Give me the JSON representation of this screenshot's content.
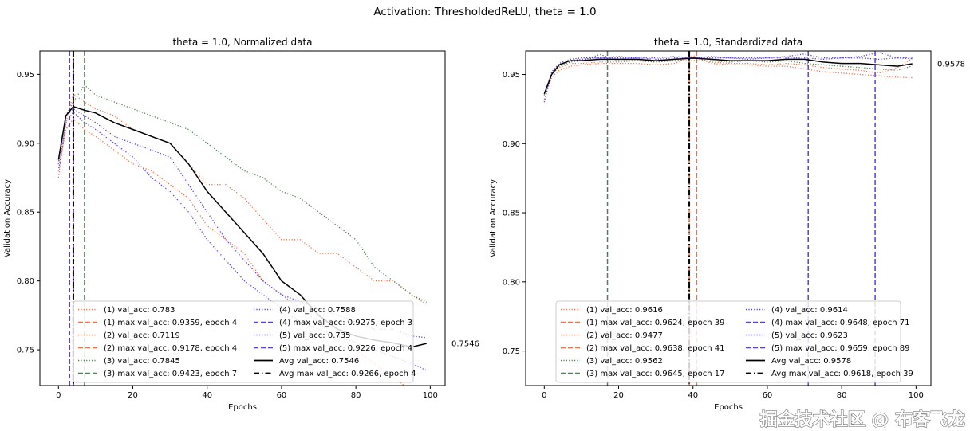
{
  "suptitle": "Activation: ThresholdedReLU, theta = 1.0",
  "watermark": "掘金技术社区 @ 布客飞龙",
  "colors": {
    "s1": "#e8744a",
    "s2": "#e8744a",
    "s3": "#4f7f55",
    "s4": "#5b3fd6",
    "s5": "#5b3fd6",
    "avg": "#000000"
  },
  "chart_data": [
    {
      "type": "line",
      "title": "theta = 1.0, Normalized data",
      "xlabel": "Epochs",
      "ylabel": "Validation Accuracy",
      "xlim": [
        -5,
        104
      ],
      "ylim": [
        0.724,
        0.967
      ],
      "xticks": [
        0,
        20,
        40,
        60,
        80,
        100
      ],
      "yticks": [
        0.75,
        0.8,
        0.85,
        0.9,
        0.95
      ],
      "grid": false,
      "legend_placement": "lower-center",
      "end_annotation": "0.7546",
      "x": [
        0,
        2,
        4,
        7,
        10,
        15,
        20,
        25,
        30,
        35,
        40,
        45,
        50,
        55,
        60,
        65,
        70,
        75,
        80,
        85,
        90,
        95,
        99
      ],
      "series": [
        {
          "key": "s1",
          "style": "dotted",
          "values": [
            0.875,
            0.915,
            0.9359,
            0.93,
            0.925,
            0.92,
            0.91,
            0.905,
            0.9,
            0.885,
            0.87,
            0.87,
            0.86,
            0.845,
            0.83,
            0.83,
            0.82,
            0.82,
            0.81,
            0.8,
            0.8,
            0.79,
            0.783
          ]
        },
        {
          "key": "s2",
          "style": "dotted",
          "values": [
            0.88,
            0.91,
            0.9178,
            0.91,
            0.905,
            0.895,
            0.885,
            0.88,
            0.87,
            0.86,
            0.84,
            0.83,
            0.82,
            0.8,
            0.79,
            0.78,
            0.77,
            0.76,
            0.75,
            0.74,
            0.73,
            0.72,
            0.7119
          ]
        },
        {
          "key": "s3",
          "style": "dotted",
          "values": [
            0.885,
            0.92,
            0.93,
            0.9423,
            0.935,
            0.93,
            0.925,
            0.92,
            0.915,
            0.91,
            0.9,
            0.89,
            0.88,
            0.875,
            0.865,
            0.86,
            0.85,
            0.84,
            0.83,
            0.81,
            0.8,
            0.79,
            0.7845
          ]
        },
        {
          "key": "s4",
          "style": "dotted",
          "values": [
            0.885,
            0.92,
            0.925,
            0.92,
            0.915,
            0.905,
            0.9,
            0.895,
            0.89,
            0.87,
            0.85,
            0.83,
            0.815,
            0.8,
            0.79,
            0.785,
            0.78,
            0.775,
            0.77,
            0.765,
            0.765,
            0.76,
            0.7588
          ]
        },
        {
          "key": "s5",
          "style": "dotted",
          "values": [
            0.88,
            0.915,
            0.9226,
            0.915,
            0.91,
            0.9,
            0.89,
            0.875,
            0.865,
            0.85,
            0.83,
            0.815,
            0.8,
            0.79,
            0.78,
            0.77,
            0.765,
            0.76,
            0.755,
            0.75,
            0.745,
            0.74,
            0.735
          ]
        },
        {
          "key": "avg",
          "style": "solid",
          "values": [
            0.888,
            0.92,
            0.9266,
            0.924,
            0.922,
            0.915,
            0.91,
            0.905,
            0.9,
            0.885,
            0.865,
            0.85,
            0.835,
            0.82,
            0.8,
            0.79,
            0.775,
            0.765,
            0.76,
            0.757,
            0.755,
            0.752,
            0.7546
          ]
        }
      ],
      "vlines": [
        {
          "key": "s1",
          "epoch": 4,
          "style": "dashed"
        },
        {
          "key": "s2",
          "epoch": 4,
          "style": "dashed"
        },
        {
          "key": "s3",
          "epoch": 7,
          "style": "dashed"
        },
        {
          "key": "s4",
          "epoch": 3,
          "style": "dashed"
        },
        {
          "key": "s5",
          "epoch": 4,
          "style": "dashed"
        },
        {
          "key": "avg",
          "epoch": 4,
          "style": "dashdot"
        }
      ],
      "legend": [
        {
          "key": "s1",
          "style": "dotted",
          "label": "(1) val_acc: 0.783"
        },
        {
          "key": "s1",
          "style": "dashed",
          "label": "(1) max val_acc: 0.9359, epoch 4"
        },
        {
          "key": "s2",
          "style": "dotted",
          "label": "(2) val_acc: 0.7119"
        },
        {
          "key": "s2",
          "style": "dashed",
          "label": "(2) max val_acc: 0.9178, epoch 4"
        },
        {
          "key": "s3",
          "style": "dotted",
          "label": "(3) val_acc: 0.7845"
        },
        {
          "key": "s3",
          "style": "dashed",
          "label": "(3) max val_acc: 0.9423, epoch 7"
        },
        {
          "key": "s4",
          "style": "dotted",
          "label": "(4) val_acc: 0.7588"
        },
        {
          "key": "s4",
          "style": "dashed",
          "label": "(4) max val_acc: 0.9275, epoch 3"
        },
        {
          "key": "s5",
          "style": "dotted",
          "label": "(5) val_acc: 0.735"
        },
        {
          "key": "s5",
          "style": "dashed",
          "label": "(5) max val_acc: 0.9226, epoch 4"
        },
        {
          "key": "avg",
          "style": "solid",
          "label": "Avg val_acc: 0.7546"
        },
        {
          "key": "avg",
          "style": "dashdot",
          "label": "Avg max val_acc: 0.9266, epoch 4"
        }
      ]
    },
    {
      "type": "line",
      "title": "theta = 1.0, Standardized data",
      "xlabel": "Epochs",
      "ylabel": "Validation Accuracy",
      "xlim": [
        -5,
        104
      ],
      "ylim": [
        0.725,
        0.967
      ],
      "xticks": [
        0,
        20,
        40,
        60,
        80,
        100
      ],
      "yticks": [
        0.75,
        0.8,
        0.85,
        0.9,
        0.95
      ],
      "grid": false,
      "legend_placement": "lower-center",
      "end_annotation": "0.9578",
      "x": [
        0,
        2,
        4,
        7,
        10,
        15,
        20,
        25,
        30,
        35,
        40,
        45,
        50,
        55,
        60,
        65,
        70,
        75,
        80,
        85,
        90,
        95,
        99
      ],
      "series": [
        {
          "key": "s1",
          "style": "dotted",
          "values": [
            0.935,
            0.95,
            0.955,
            0.958,
            0.958,
            0.959,
            0.959,
            0.96,
            0.959,
            0.96,
            0.9624,
            0.959,
            0.958,
            0.958,
            0.957,
            0.958,
            0.957,
            0.955,
            0.954,
            0.953,
            0.951,
            0.955,
            0.9616
          ]
        },
        {
          "key": "s2",
          "style": "dotted",
          "values": [
            0.932,
            0.948,
            0.953,
            0.956,
            0.957,
            0.958,
            0.958,
            0.958,
            0.957,
            0.958,
            0.9638,
            0.958,
            0.957,
            0.957,
            0.956,
            0.956,
            0.954,
            0.952,
            0.951,
            0.95,
            0.949,
            0.948,
            0.9477
          ]
        },
        {
          "key": "s3",
          "style": "dotted",
          "values": [
            0.935,
            0.95,
            0.956,
            0.959,
            0.96,
            0.9645,
            0.96,
            0.96,
            0.959,
            0.96,
            0.96,
            0.96,
            0.959,
            0.96,
            0.959,
            0.96,
            0.958,
            0.957,
            0.956,
            0.955,
            0.954,
            0.953,
            0.9562
          ]
        },
        {
          "key": "s4",
          "style": "dotted",
          "values": [
            0.93,
            0.952,
            0.958,
            0.961,
            0.962,
            0.962,
            0.963,
            0.962,
            0.962,
            0.963,
            0.962,
            0.963,
            0.962,
            0.962,
            0.962,
            0.963,
            0.9648,
            0.962,
            0.962,
            0.962,
            0.961,
            0.962,
            0.9614
          ]
        },
        {
          "key": "s5",
          "style": "dotted",
          "values": [
            0.936,
            0.951,
            0.957,
            0.96,
            0.961,
            0.962,
            0.962,
            0.962,
            0.961,
            0.962,
            0.962,
            0.962,
            0.962,
            0.961,
            0.962,
            0.962,
            0.962,
            0.961,
            0.962,
            0.963,
            0.9659,
            0.962,
            0.9623
          ]
        },
        {
          "key": "avg",
          "style": "solid",
          "values": [
            0.936,
            0.95,
            0.957,
            0.96,
            0.96,
            0.961,
            0.961,
            0.961,
            0.96,
            0.961,
            0.9618,
            0.961,
            0.96,
            0.96,
            0.96,
            0.961,
            0.961,
            0.959,
            0.958,
            0.958,
            0.957,
            0.956,
            0.9578
          ]
        }
      ],
      "vlines": [
        {
          "key": "s1",
          "epoch": 39,
          "style": "dashed"
        },
        {
          "key": "s2",
          "epoch": 41,
          "style": "dashed"
        },
        {
          "key": "s3",
          "epoch": 17,
          "style": "dashed"
        },
        {
          "key": "s4",
          "epoch": 71,
          "style": "dashed"
        },
        {
          "key": "s5",
          "epoch": 89,
          "style": "dashed"
        },
        {
          "key": "avg",
          "epoch": 39,
          "style": "dashdot"
        }
      ],
      "legend": [
        {
          "key": "s1",
          "style": "dotted",
          "label": "(1) val_acc: 0.9616"
        },
        {
          "key": "s1",
          "style": "dashed",
          "label": "(1) max val_acc: 0.9624, epoch 39"
        },
        {
          "key": "s2",
          "style": "dotted",
          "label": "(2) val_acc: 0.9477"
        },
        {
          "key": "s2",
          "style": "dashed",
          "label": "(2) max val_acc: 0.9638, epoch 41"
        },
        {
          "key": "s3",
          "style": "dotted",
          "label": "(3) val_acc: 0.9562"
        },
        {
          "key": "s3",
          "style": "dashed",
          "label": "(3) max val_acc: 0.9645, epoch 17"
        },
        {
          "key": "s4",
          "style": "dotted",
          "label": "(4) val_acc: 0.9614"
        },
        {
          "key": "s4",
          "style": "dashed",
          "label": "(4) max val_acc: 0.9648, epoch 71"
        },
        {
          "key": "s5",
          "style": "dotted",
          "label": "(5) val_acc: 0.9623"
        },
        {
          "key": "s5",
          "style": "dashed",
          "label": "(5) max val_acc: 0.9659, epoch 89"
        },
        {
          "key": "avg",
          "style": "solid",
          "label": "Avg val_acc: 0.9578"
        },
        {
          "key": "avg",
          "style": "dashdot",
          "label": "Avg max val_acc: 0.9618, epoch 39"
        }
      ]
    }
  ]
}
